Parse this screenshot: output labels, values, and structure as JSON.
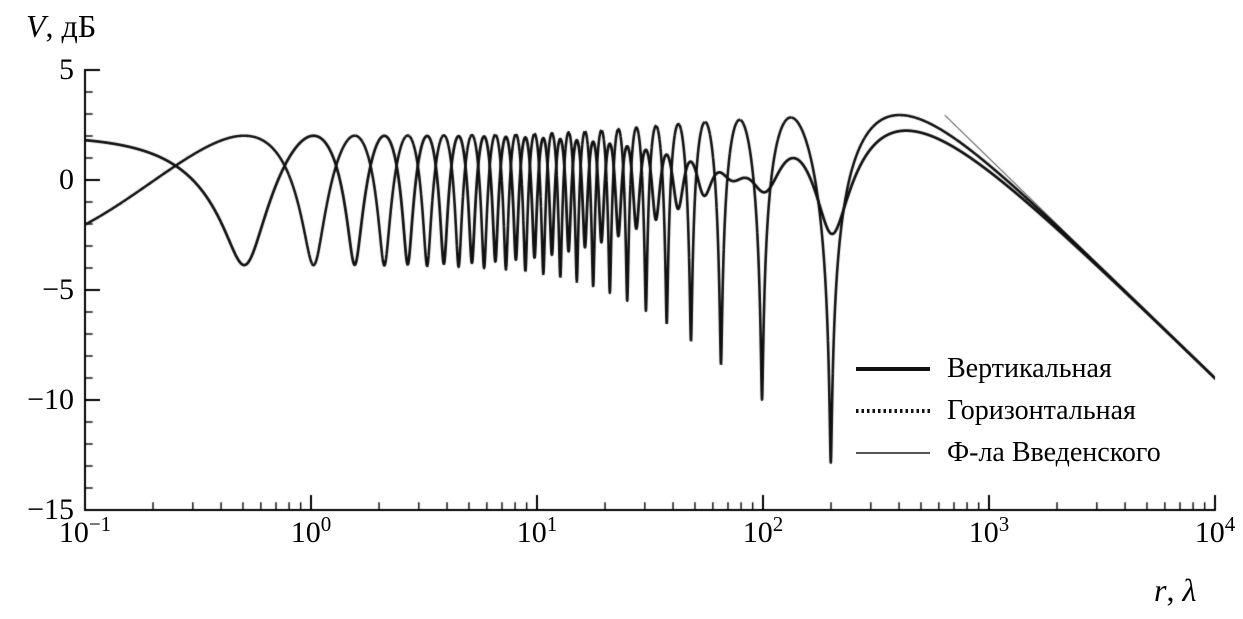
{
  "chart_data": {
    "type": "line",
    "title": "",
    "ylabel": "V, дБ",
    "ylabel_parts": {
      "var": "V",
      "sep": ", ",
      "unit": "дБ"
    },
    "xlabel": "r, λ",
    "xlabel_parts": {
      "var": "r",
      "sep": ", ",
      "unit": "λ"
    },
    "x_scale": "log",
    "x_range": [
      0.1,
      10000
    ],
    "y_range": [
      -15,
      5
    ],
    "grid": false,
    "y_ticks": [
      {
        "label": "5",
        "value": 5
      },
      {
        "label": "0",
        "value": 0
      },
      {
        "label": "−5",
        "value": -5
      },
      {
        "label": "−10",
        "value": -10
      },
      {
        "label": "−15",
        "value": -15
      }
    ],
    "y_minor_step": 1,
    "x_ticks": [
      {
        "base": "10",
        "exp": "−1",
        "value": 0.1
      },
      {
        "base": "10",
        "exp": "0",
        "value": 1
      },
      {
        "base": "10",
        "exp": "1",
        "value": 10
      },
      {
        "base": "10",
        "exp": "2",
        "value": 100
      },
      {
        "base": "10",
        "exp": "3",
        "value": 1000
      },
      {
        "base": "10",
        "exp": "4",
        "value": 10000
      }
    ],
    "legend": {
      "position": "inside-right-bottom",
      "entries": [
        {
          "label": "Вертикальная",
          "style": "solid"
        },
        {
          "label": "Горизонтальная",
          "style": "dotted"
        },
        {
          "label": "Ф-ла Введенского",
          "style": "thin"
        }
      ]
    },
    "model": {
      "description": "Two-ray ground-reflection interference factor V = 10·log10|1 + Γ(ψ)·exp(i·2πΔ/λ)|, Δ = √(r²+(h1+h2)²) − √(r²+(h1−h2)²); Γ = Fresnel reflection coefficient for vertical / horizontal polarization, grazing angle ψ = atan((h1+h2)/r)",
      "h1_lambda": 10,
      "h2_lambda": 10,
      "epsilon": 15,
      "samples": 9000,
      "vvedensky_formula": "V = 10·log10(4π·h1·h2/(λ·r))",
      "vvedensky_x_start": 640
    },
    "series": [
      {
        "name": "Вертикальная",
        "polarization": "vertical",
        "style": "solid",
        "color": "#111111",
        "line_width": 2.8
      },
      {
        "name": "Горизонтальная",
        "polarization": "horizontal",
        "style": "dotted",
        "color": "#111111",
        "line_width": 2.6
      },
      {
        "name": "Ф-ла Введенского",
        "polarization": "vvedensky",
        "style": "solid-thin",
        "color": "#555555",
        "line_width": 1.1
      }
    ],
    "key_features": {
      "vertical_start": {
        "r": 0.1,
        "v_db": 1.8
      },
      "horizontal_start": {
        "r": 0.1,
        "v_db": -2.0
      },
      "first_vertical_minimum": {
        "r": 0.5,
        "v_db": -3.9
      },
      "first_horizontal_minimum": {
        "r": 1.0,
        "v_db": -4.0
      },
      "typical_maxima_db": 2.2,
      "deep_horizontal_nulls": [
        {
          "r": 48,
          "v_db": -7.3
        },
        {
          "r": 65,
          "v_db": -8.4
        },
        {
          "r": 99,
          "v_db": -10.0
        },
        {
          "r": 200,
          "v_db": -12.8
        }
      ],
      "last_maximum_horizontal": {
        "r": 400,
        "v_db": 2.9
      },
      "last_maximum_vertical": {
        "r": 400,
        "v_db": 2.2
      },
      "value_at_r_10000": -9.0,
      "asymptotic_slope_db_per_decade": -10
    }
  }
}
